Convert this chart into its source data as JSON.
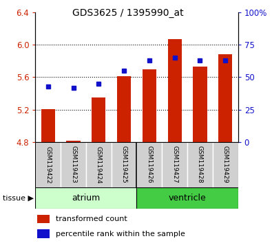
{
  "title": "GDS3625 / 1395990_at",
  "samples": [
    "GSM119422",
    "GSM119423",
    "GSM119424",
    "GSM119425",
    "GSM119426",
    "GSM119427",
    "GSM119428",
    "GSM119429"
  ],
  "bar_values": [
    5.21,
    4.82,
    5.35,
    5.61,
    5.7,
    6.07,
    5.73,
    5.88
  ],
  "percentile_values_pct": [
    43,
    42,
    45,
    55,
    63,
    65,
    63,
    63
  ],
  "bar_base": 4.8,
  "ylim": [
    4.8,
    6.4
  ],
  "yticks_left": [
    4.8,
    5.2,
    5.6,
    6.0,
    6.4
  ],
  "yticks_right": [
    0,
    25,
    50,
    75,
    100
  ],
  "bar_color": "#cc2200",
  "dot_color": "#1111cc",
  "atrium_color": "#ccffcc",
  "ventricle_color": "#44cc44",
  "sample_box_color": "#d0d0d0",
  "tissue_label": "tissue",
  "legend_bar_label": "transformed count",
  "legend_dot_label": "percentile rank within the sample",
  "bar_width": 0.55,
  "tick_label_color_left": "#cc2200",
  "tick_label_color_right": "#1111cc"
}
